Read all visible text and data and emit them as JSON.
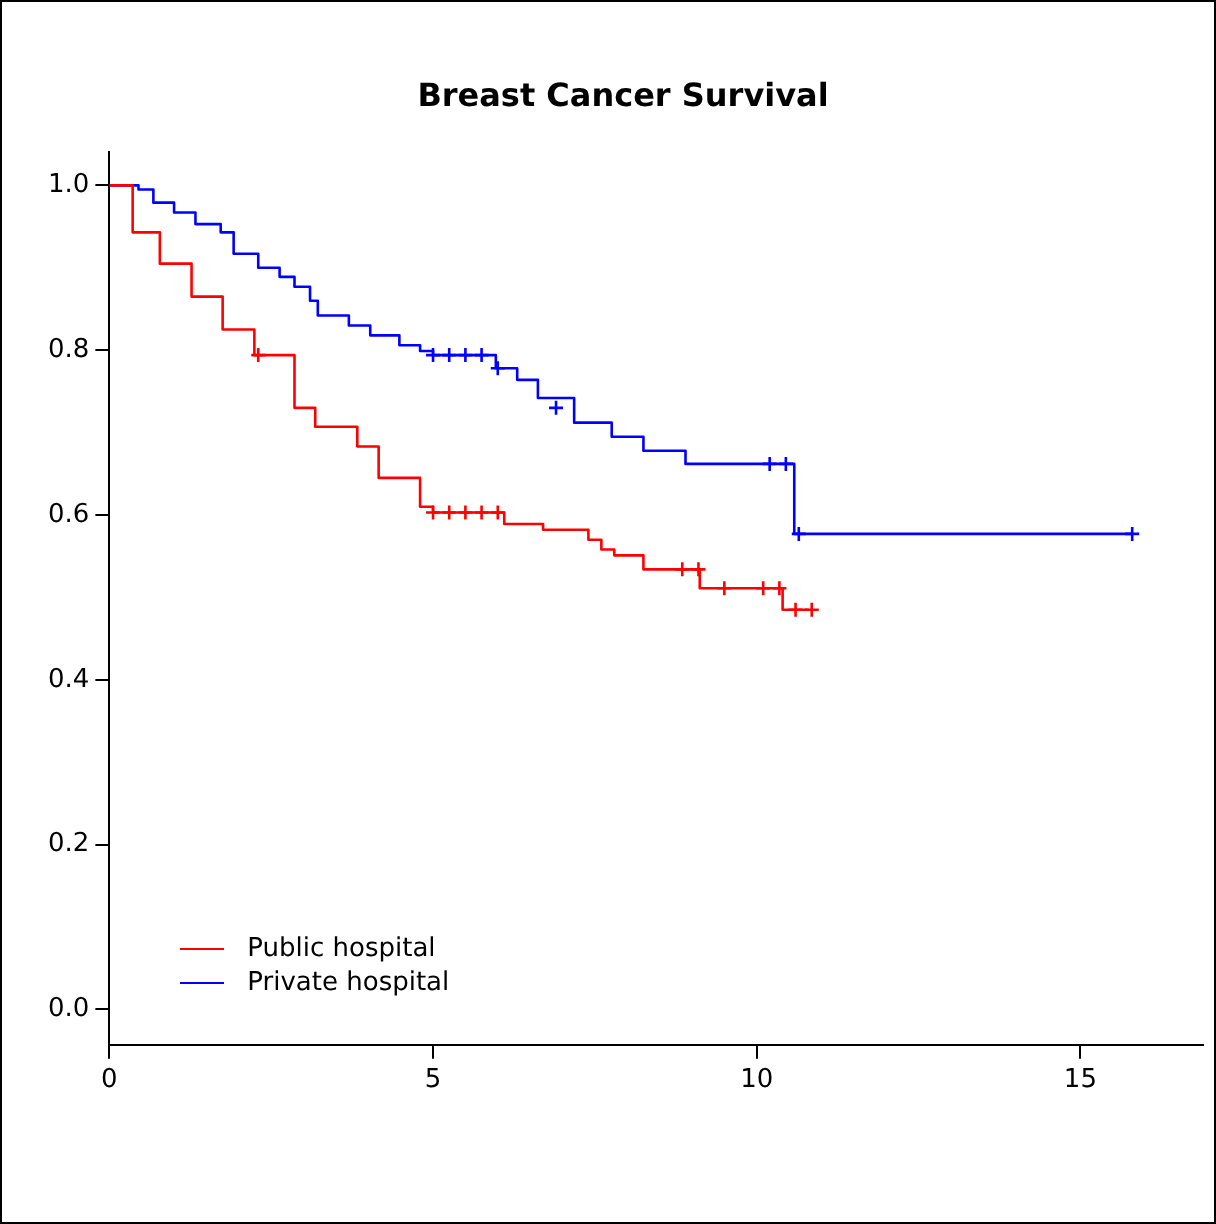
{
  "chart_data": {
    "type": "step",
    "title": "Breast Cancer Survival",
    "xlim": [
      0,
      16.9
    ],
    "ylim": [
      -0.043,
      1.04
    ],
    "xticks": [
      0,
      5,
      10,
      15
    ],
    "yticks": [
      {
        "value": 0,
        "label": "0.0"
      },
      {
        "value": 0.2,
        "label": "0.2"
      },
      {
        "value": 0.4,
        "label": "0.4"
      },
      {
        "value": 0.6,
        "label": "0.6"
      },
      {
        "value": 0.8,
        "label": "0.8"
      },
      {
        "value": 1,
        "label": "1.0"
      }
    ],
    "grid": false,
    "legend": "bottom left",
    "series": [
      {
        "name": "Public hospital",
        "color": "#ff0000",
        "x": [
          0,
          0.36,
          0.78,
          1.27,
          1.75,
          2.24,
          2.86,
          3.18,
          3.83,
          4.16,
          4.8,
          5.0,
          6.1,
          6.7,
          7.4,
          7.6,
          7.8,
          8.25,
          9.12,
          10.4,
          10.8
        ],
        "values": [
          1,
          0.943,
          0.905,
          0.865,
          0.825,
          0.794,
          0.73,
          0.707,
          0.683,
          0.645,
          0.61,
          0.603,
          0.589,
          0.582,
          0.57,
          0.558,
          0.551,
          0.534,
          0.511,
          0.485,
          0.485
        ]
      },
      {
        "name": "Private hospital",
        "color": "#0000ff",
        "x": [
          0,
          0.45,
          0.68,
          1.0,
          1.33,
          1.72,
          1.92,
          2.3,
          2.63,
          2.86,
          3.1,
          3.22,
          3.7,
          4.03,
          4.48,
          4.8,
          5.0,
          5.97,
          6.3,
          6.62,
          7.18,
          7.76,
          8.25,
          8.9,
          10.58,
          15.8
        ],
        "values": [
          1,
          0.995,
          0.979,
          0.967,
          0.953,
          0.943,
          0.917,
          0.9,
          0.889,
          0.877,
          0.86,
          0.842,
          0.83,
          0.818,
          0.806,
          0.799,
          0.794,
          0.778,
          0.764,
          0.742,
          0.712,
          0.695,
          0.678,
          0.662,
          0.577,
          0.577
        ]
      },
      {
        "type": "scatter",
        "marker": "cross",
        "color": "#ff0000",
        "x": [
          2.3,
          5.0,
          5.25,
          5.5,
          5.75,
          6.0,
          8.85,
          9.1,
          9.5,
          10.1,
          10.35,
          10.6,
          10.85
        ],
        "values": [
          0.794,
          0.603,
          0.603,
          0.603,
          0.603,
          0.603,
          0.534,
          0.534,
          0.511,
          0.511,
          0.511,
          0.485,
          0.485
        ]
      },
      {
        "type": "scatter",
        "marker": "cross",
        "color": "#0000ff",
        "x": [
          5.0,
          5.25,
          5.5,
          5.75,
          6.0,
          6.9,
          10.2,
          10.45,
          10.65,
          15.8
        ],
        "values": [
          0.794,
          0.794,
          0.794,
          0.794,
          0.778,
          0.73,
          0.662,
          0.662,
          0.577,
          0.577
        ]
      }
    ]
  }
}
